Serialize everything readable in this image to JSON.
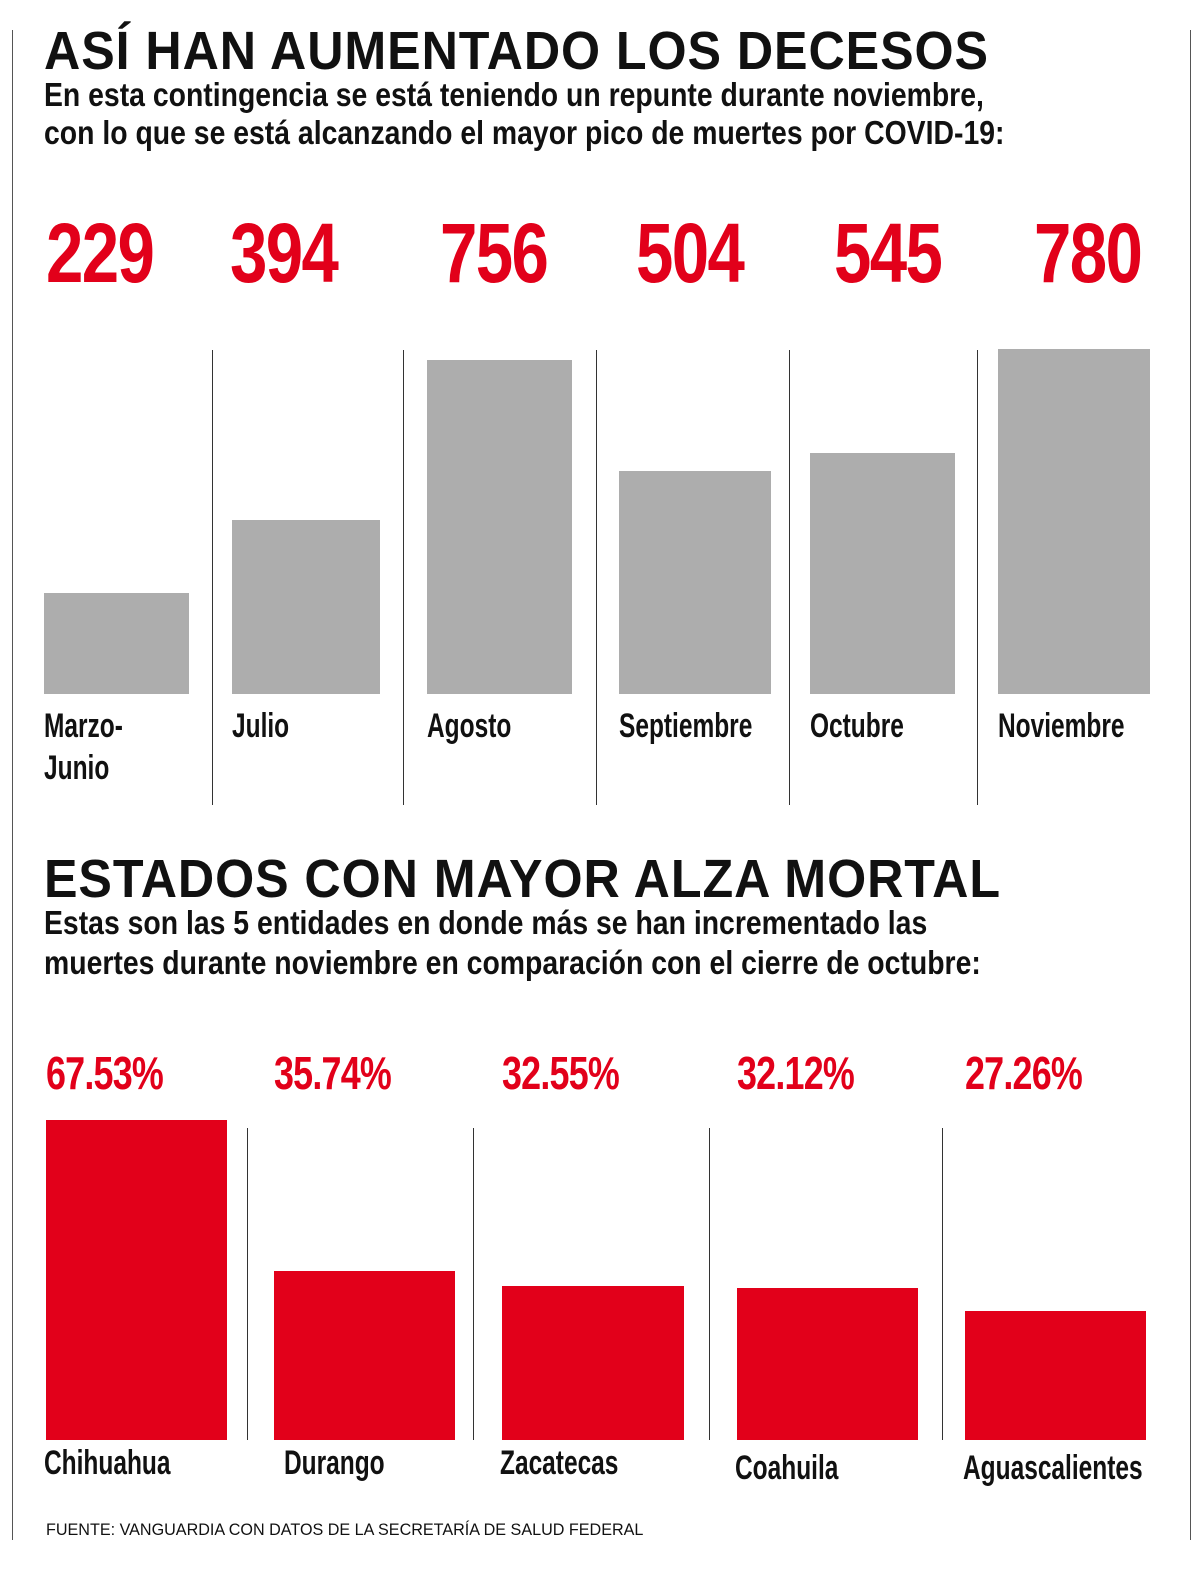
{
  "section1": {
    "title": "ASÍ HAN AUMENTADO LOS DECESOS",
    "subtitle_line1": "En esta contingencia se está teniendo un repunte durante noviembre,",
    "subtitle_line2": "con lo que se está alcanzando el mayor pico de muertes por COVID-19:"
  },
  "section2": {
    "title": "ESTADOS CON MAYOR ALZA MORTAL",
    "subtitle_line1": "Estas son las 5 entidades en donde más se han incrementado las",
    "subtitle_line2": "muertes durante noviembre en comparación con el cierre de octubre:"
  },
  "source": "FUENTE: VANGUARDIA CON DATOS DE LA SECRETARÍA DE SALUD FEDERAL",
  "chart_data": [
    {
      "type": "bar",
      "categories": [
        "Marzo-\nJunio",
        "Julio",
        "Agosto",
        "Septiembre",
        "Octubre",
        "Noviembre"
      ],
      "values": [
        229,
        394,
        756,
        504,
        545,
        780
      ],
      "value_labels": [
        "229",
        "394",
        "756",
        "504",
        "545",
        "780"
      ],
      "bar_color": "#adadad",
      "label_color": "#e2001a",
      "grid": false
    },
    {
      "type": "bar",
      "categories": [
        "Chihuahua",
        "Durango",
        "Zacatecas",
        "Coahuila",
        "Aguascalientes"
      ],
      "values": [
        67.53,
        35.74,
        32.55,
        32.12,
        27.26
      ],
      "value_labels": [
        "67.53%",
        "35.74%",
        "32.55%",
        "32.12%",
        "27.26%"
      ],
      "bar_color": "#e2001a",
      "label_color": "#e2001a",
      "grid": false
    }
  ]
}
